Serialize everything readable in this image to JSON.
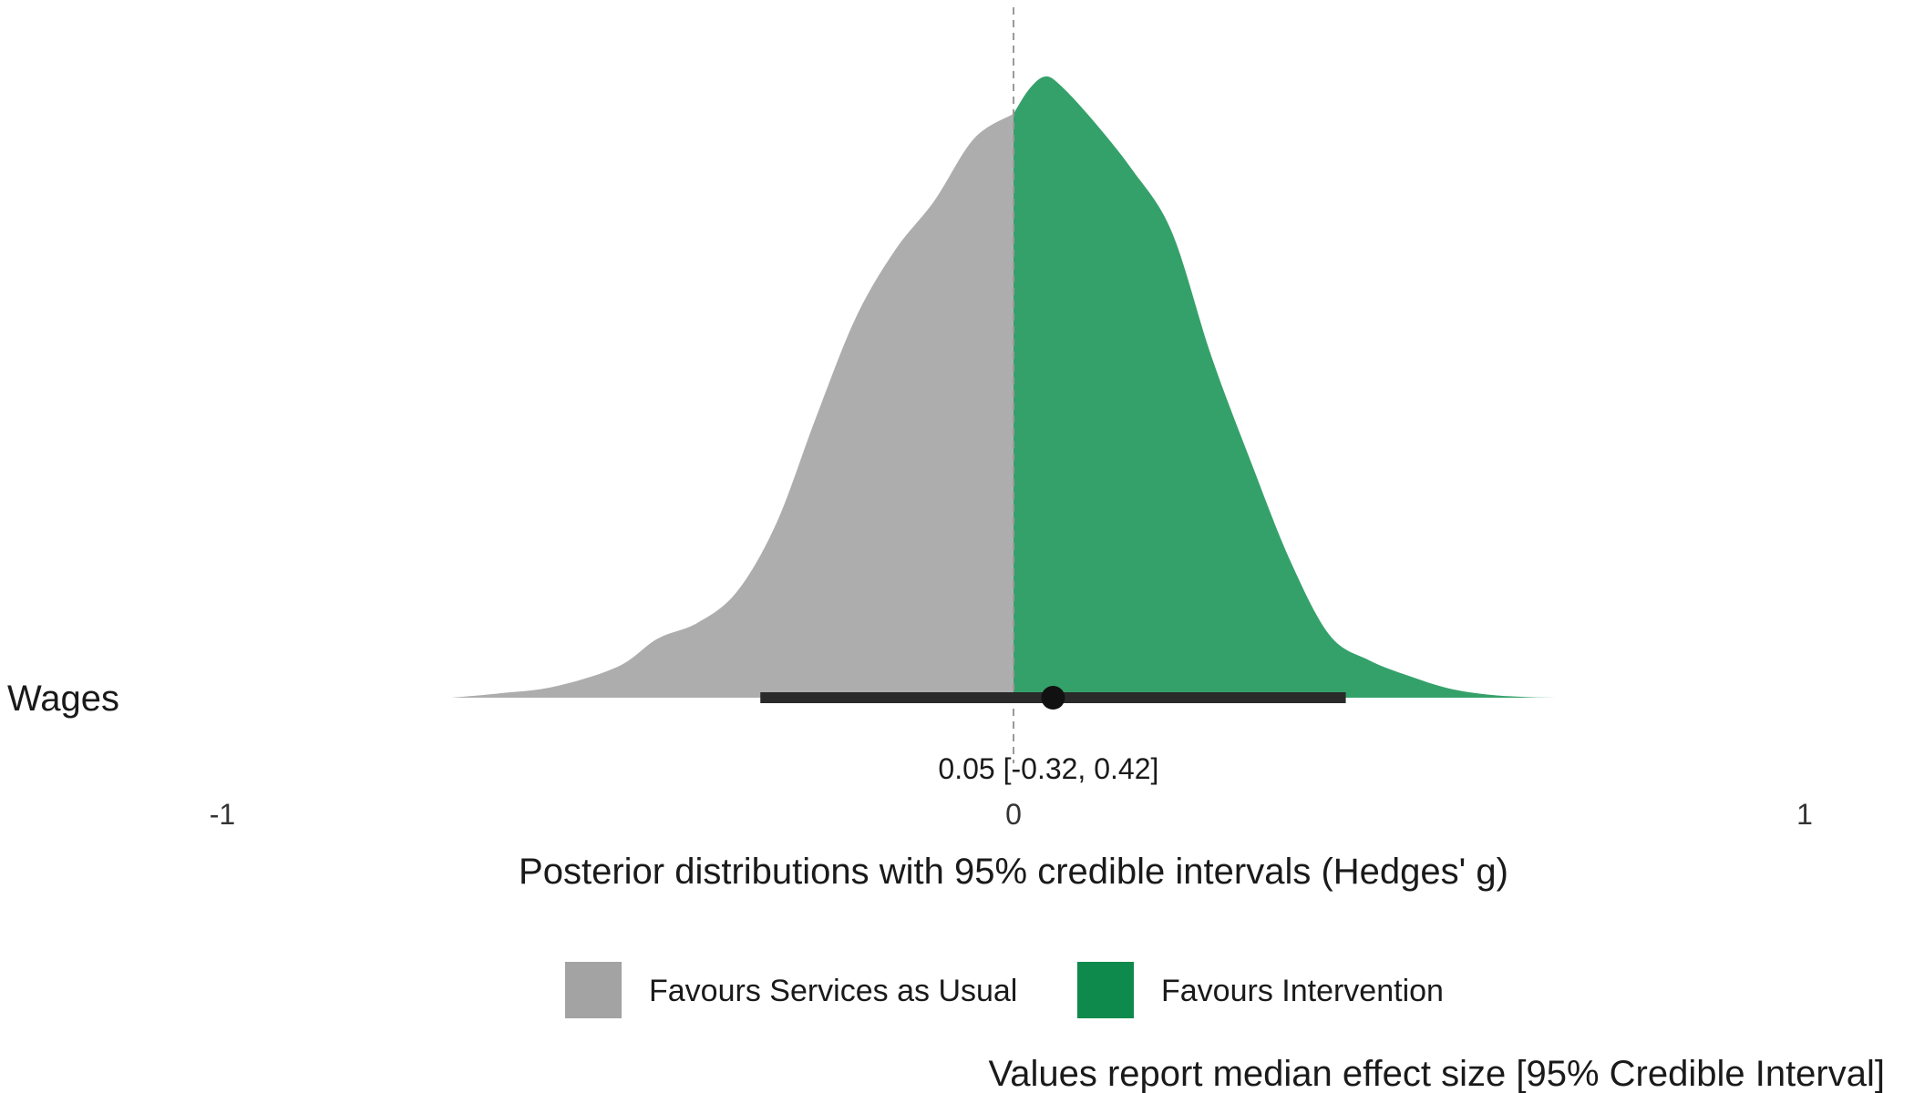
{
  "chart_data": {
    "type": "area",
    "row_label": "Wages",
    "xlabel": "Posterior distributions with 95% credible intervals (Hedges' g)",
    "x_ticks": [
      -1,
      0,
      1
    ],
    "x_tick_labels": [
      "-1",
      "0",
      "1"
    ],
    "xlim": [
      -1,
      1
    ],
    "reference_line": 0,
    "median": 0.05,
    "ci_low": -0.32,
    "ci_high": 0.42,
    "estimate_label": "0.05 [-0.32, 0.42]",
    "density": {
      "x": [
        -0.71,
        -0.65,
        -0.58,
        -0.5,
        -0.45,
        -0.4,
        -0.35,
        -0.3,
        -0.25,
        -0.2,
        -0.15,
        -0.1,
        -0.05,
        0.0,
        0.02,
        0.04,
        0.06,
        0.1,
        0.15,
        0.2,
        0.25,
        0.3,
        0.35,
        0.4,
        0.45,
        0.5,
        0.55,
        0.6,
        0.65,
        0.7,
        0.75
      ],
      "y": [
        0.0,
        0.007,
        0.018,
        0.05,
        0.095,
        0.12,
        0.17,
        0.28,
        0.45,
        0.61,
        0.72,
        0.8,
        0.9,
        0.94,
        0.98,
        1.0,
        0.985,
        0.93,
        0.85,
        0.75,
        0.55,
        0.38,
        0.22,
        0.1,
        0.06,
        0.035,
        0.015,
        0.005,
        0.001,
        0.0,
        0.0
      ]
    },
    "colors": {
      "favours_usual": "#AEADAE",
      "favours_intervention": "#35A16A",
      "legend_usual": "#A3A3A3",
      "legend_intervention": "#0E8A4C",
      "interval": "#2A2A2A",
      "point": "#111111",
      "reference": "#9A9A9A"
    },
    "legend": {
      "position": "bottom",
      "items": [
        {
          "label": "Favours Services as Usual",
          "color": "#A3A3A3"
        },
        {
          "label": "Favours Intervention",
          "color": "#0E8A4C"
        }
      ]
    },
    "caption": "Values report median effect size [95% Credible Interval]",
    "grid": false
  }
}
